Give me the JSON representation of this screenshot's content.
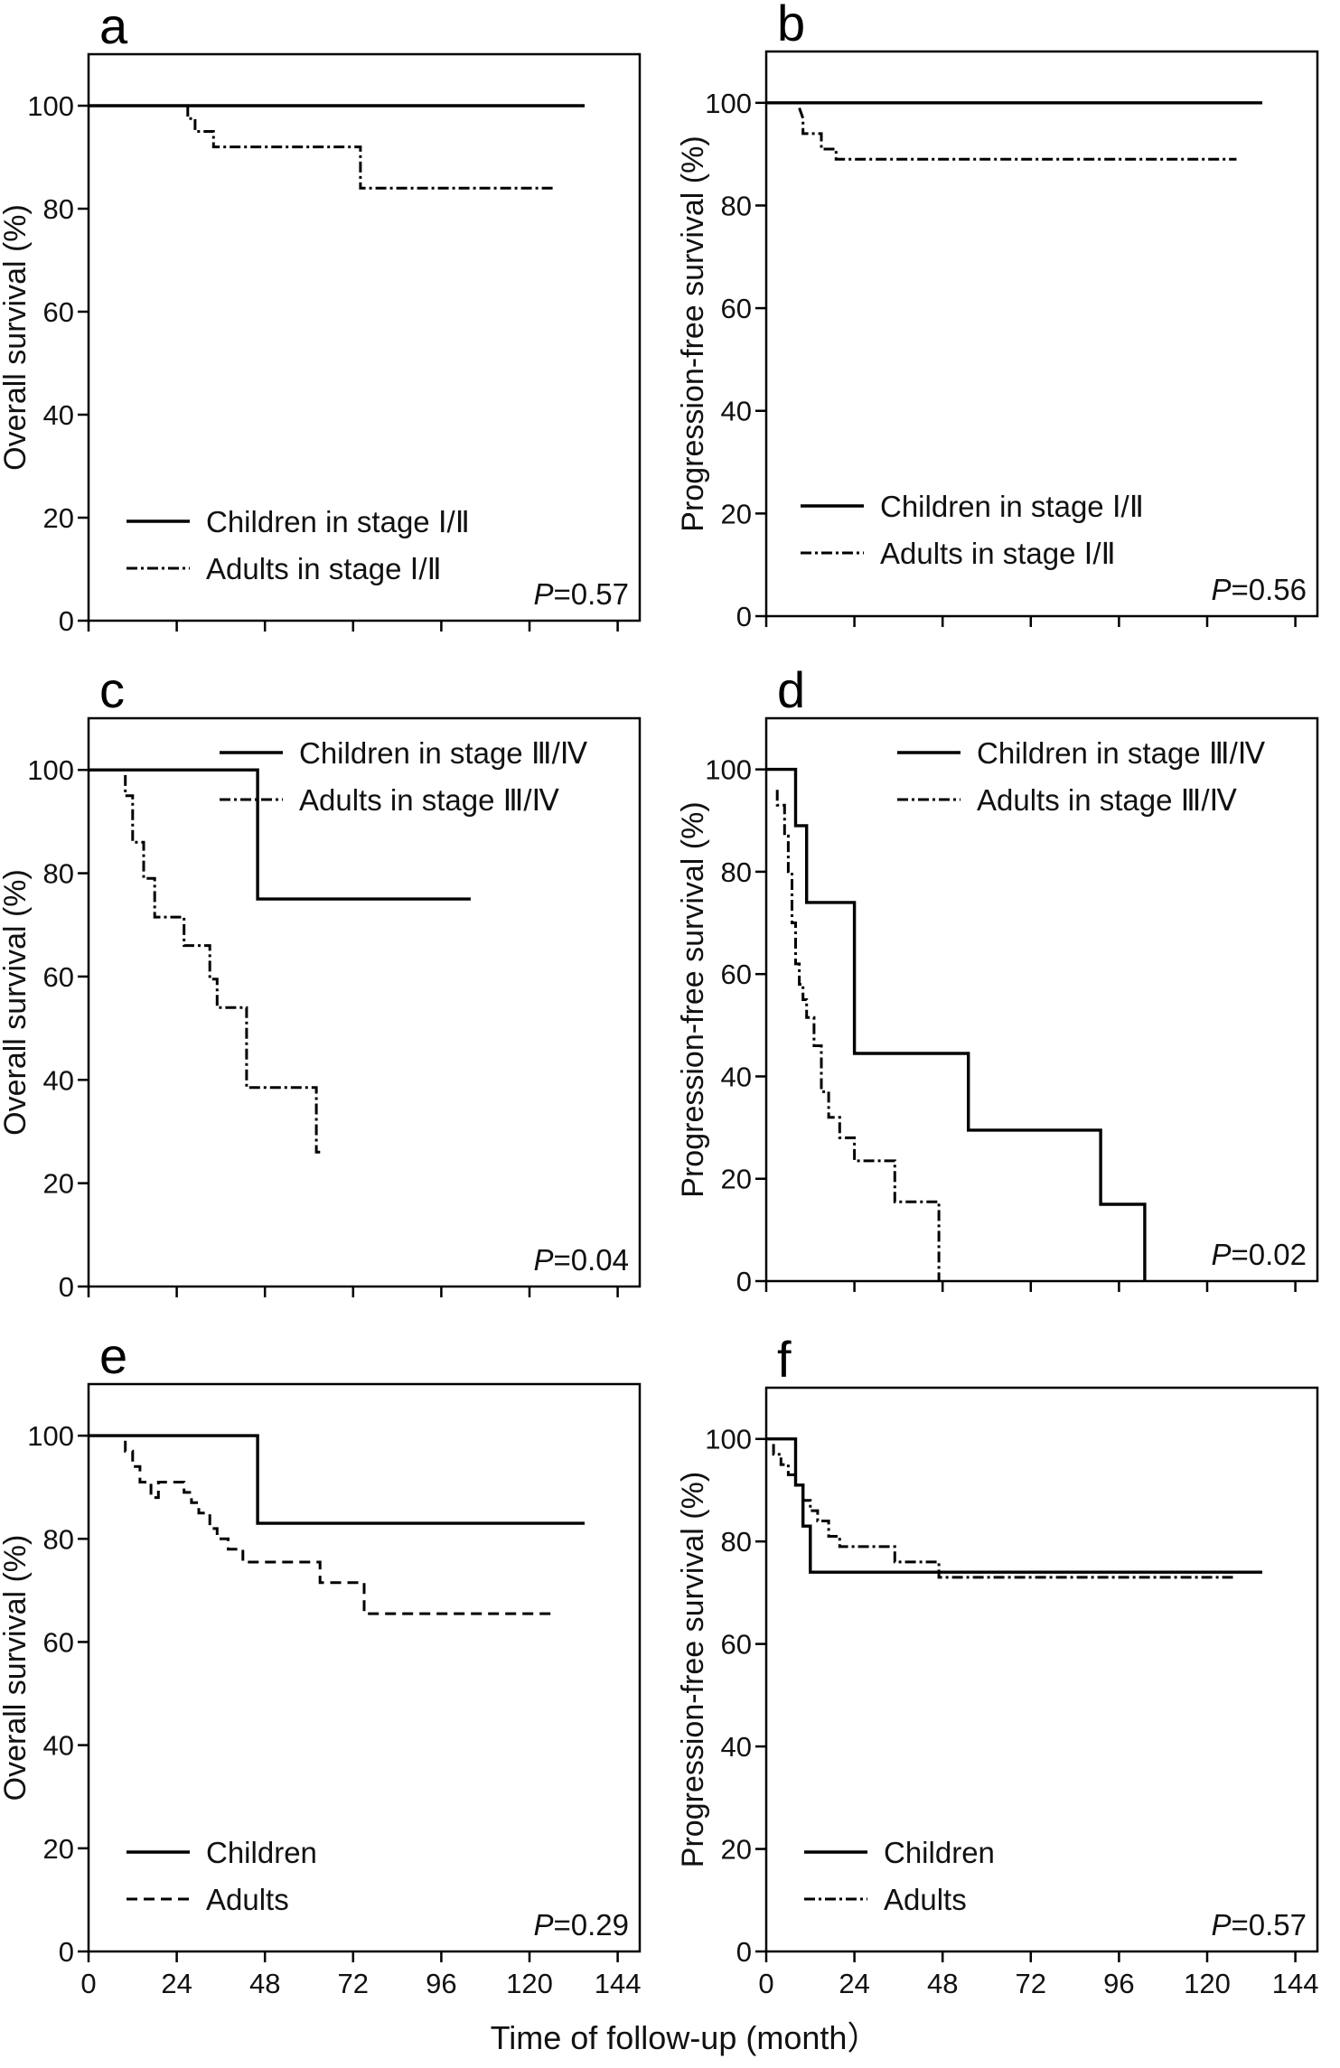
{
  "figure": {
    "xlabel": "Time of follow-up (month）"
  },
  "chart_data": [
    {
      "panel": "a",
      "type": "line",
      "ylabel": "Overall survival (%)",
      "ylim": [
        0,
        110
      ],
      "yticks": [
        0,
        20,
        40,
        60,
        80,
        100
      ],
      "xlim": [
        0,
        150
      ],
      "xticks": [
        0,
        24,
        48,
        72,
        96,
        120,
        144
      ],
      "xticklabels_visible": false,
      "pvalue": "=0.57",
      "legend_position": "bottom-left",
      "series": [
        {
          "name": "Children in stage Ⅰ/Ⅱ",
          "style": "solid",
          "x": [
            0,
            135
          ],
          "y": [
            100,
            100
          ]
        },
        {
          "name": "Adults in stage Ⅰ/Ⅱ",
          "style": "dashdot",
          "x": [
            27,
            27,
            29,
            29,
            34,
            34,
            39,
            39,
            74,
            74,
            127
          ],
          "y": [
            100,
            97.5,
            97.5,
            95,
            95,
            92,
            92,
            92,
            92,
            84,
            84
          ]
        }
      ]
    },
    {
      "panel": "b",
      "type": "line",
      "ylabel": "Progression-free survival (%)",
      "ylim": [
        0,
        110
      ],
      "yticks": [
        0,
        20,
        40,
        60,
        80,
        100
      ],
      "xlim": [
        0,
        150
      ],
      "xticks": [
        0,
        24,
        48,
        72,
        96,
        120,
        144
      ],
      "xticklabels_visible": false,
      "pvalue": "=0.56",
      "legend_position": "bottom-left",
      "series": [
        {
          "name": "Children in stage Ⅰ/Ⅱ",
          "style": "solid",
          "x": [
            0,
            135
          ],
          "y": [
            100,
            100
          ]
        },
        {
          "name": "Adults in stage Ⅰ/Ⅱ",
          "style": "dashdot",
          "x": [
            9,
            10,
            10,
            15,
            15,
            19,
            19,
            128
          ],
          "y": [
            99,
            97,
            94,
            94,
            91,
            91,
            89,
            89
          ]
        }
      ]
    },
    {
      "panel": "c",
      "type": "line",
      "ylabel": "Overall survival (%)",
      "ylim": [
        0,
        110
      ],
      "yticks": [
        0,
        20,
        40,
        60,
        80,
        100
      ],
      "xlim": [
        0,
        150
      ],
      "xticks": [
        0,
        24,
        48,
        72,
        96,
        120,
        144
      ],
      "xticklabels_visible": false,
      "pvalue": "=0.04",
      "legend_position": "top-right",
      "series": [
        {
          "name": "Children in stage Ⅲ/Ⅳ",
          "style": "solid",
          "x": [
            0,
            46,
            46,
            104
          ],
          "y": [
            100,
            100,
            75,
            75
          ]
        },
        {
          "name": "Adults in stage Ⅲ/Ⅳ",
          "style": "dashdot",
          "x": [
            10,
            10,
            12,
            12,
            15,
            15,
            18,
            18,
            26,
            26,
            33,
            33,
            35,
            35,
            43,
            43,
            62,
            62,
            64
          ],
          "y": [
            99,
            95,
            95,
            86,
            86,
            79,
            79,
            71.5,
            71.5,
            66,
            66,
            59.5,
            59.5,
            54,
            54,
            38.5,
            38.5,
            26,
            26
          ]
        }
      ]
    },
    {
      "panel": "d",
      "type": "line",
      "ylabel": "Progression-free survival (%)",
      "ylim": [
        0,
        110
      ],
      "yticks": [
        0,
        20,
        40,
        60,
        80,
        100
      ],
      "xlim": [
        0,
        150
      ],
      "xticks": [
        0,
        24,
        48,
        72,
        96,
        120,
        144
      ],
      "xticklabels_visible": false,
      "pvalue": "=0.02",
      "legend_position": "top-right",
      "series": [
        {
          "name": "Children in stage Ⅲ/Ⅳ",
          "style": "solid",
          "x": [
            0,
            8,
            8,
            11,
            11,
            24,
            24,
            55,
            55,
            91,
            91,
            103,
            103
          ],
          "y": [
            100,
            100,
            89,
            89,
            74,
            74,
            44.5,
            44.5,
            29.5,
            29.5,
            15,
            15,
            0
          ]
        },
        {
          "name": "Adults in stage Ⅲ/Ⅳ",
          "style": "dashdot",
          "x": [
            3,
            3,
            5,
            5,
            6,
            6,
            7,
            7,
            8,
            8,
            9,
            9,
            10,
            10,
            11,
            11,
            13,
            13,
            15,
            15,
            17,
            17,
            20,
            20,
            24,
            24,
            35,
            35,
            47,
            47
          ],
          "y": [
            96,
            93,
            93,
            87,
            87,
            80,
            80,
            70,
            70,
            62,
            62,
            58,
            58,
            55,
            55,
            51.5,
            51.5,
            46,
            46,
            37,
            37,
            32,
            32,
            28,
            28,
            23.5,
            23.5,
            15.5,
            15.5,
            0
          ]
        }
      ]
    },
    {
      "panel": "e",
      "type": "line",
      "ylabel": "Overall survival (%)",
      "ylim": [
        0,
        110
      ],
      "yticks": [
        0,
        20,
        40,
        60,
        80,
        100
      ],
      "xlim": [
        0,
        150
      ],
      "xticks": [
        0,
        24,
        48,
        72,
        96,
        120,
        144
      ],
      "xticklabels": [
        "0",
        "24",
        "48",
        "72",
        "96",
        "120",
        "144"
      ],
      "xticklabels_visible": true,
      "pvalue": "=0.29",
      "legend_position": "bottom-left",
      "series": [
        {
          "name": "Children",
          "style": "solid",
          "x": [
            0,
            46,
            46,
            135
          ],
          "y": [
            100,
            100,
            83,
            83
          ]
        },
        {
          "name": "Adults",
          "style": "dashed",
          "x": [
            10,
            10,
            12,
            12,
            14,
            14,
            17,
            17,
            19,
            19,
            26,
            26,
            28,
            28,
            30,
            30,
            33,
            33,
            35,
            35,
            38,
            38,
            42,
            42,
            63,
            63,
            75,
            75,
            127
          ],
          "y": [
            99,
            97,
            97,
            94,
            94,
            91,
            91,
            88,
            88,
            91,
            91,
            89,
            89,
            87,
            87,
            85,
            85,
            82,
            82,
            80,
            80,
            78,
            78,
            75.5,
            75.5,
            71.5,
            71.5,
            65.5,
            65.5
          ]
        }
      ]
    },
    {
      "panel": "f",
      "type": "line",
      "ylabel": "Progression-free survival (%)",
      "ylim": [
        0,
        110
      ],
      "yticks": [
        0,
        20,
        40,
        60,
        80,
        100
      ],
      "xlim": [
        0,
        150
      ],
      "xticks": [
        0,
        24,
        48,
        72,
        96,
        120,
        144
      ],
      "xticklabels": [
        "0",
        "24",
        "48",
        "72",
        "96",
        "120",
        "144"
      ],
      "xticklabels_visible": true,
      "pvalue": "=0.57",
      "legend_position": "bottom-left",
      "series": [
        {
          "name": "Children",
          "style": "solid",
          "x": [
            0,
            8,
            8,
            10,
            10,
            12,
            12,
            135
          ],
          "y": [
            100,
            100,
            91,
            91,
            83,
            83,
            74,
            74
          ]
        },
        {
          "name": "Adults",
          "style": "dashdot",
          "x": [
            2,
            2,
            4,
            4,
            6,
            6,
            8,
            8,
            10,
            10,
            12,
            12,
            14,
            14,
            17,
            17,
            20,
            20,
            24,
            24,
            35,
            35,
            47,
            47,
            127
          ],
          "y": [
            99,
            97,
            97,
            95,
            95,
            93,
            93,
            91,
            91,
            88,
            88,
            86,
            86,
            84,
            84,
            81,
            81,
            79,
            79,
            79,
            79,
            76,
            76,
            73,
            73
          ]
        }
      ]
    }
  ]
}
